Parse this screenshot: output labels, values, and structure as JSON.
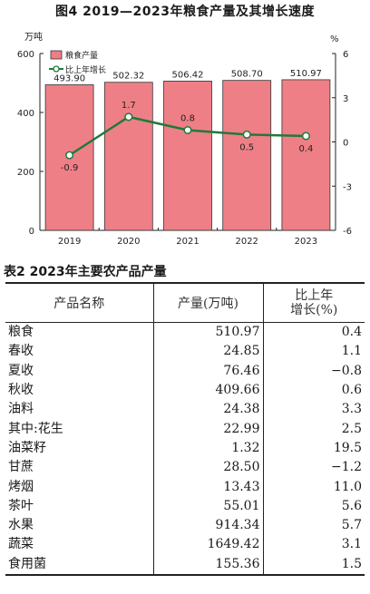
{
  "figure_title": "图4  2019—2023年粮食产量及其增长速度",
  "table_title": "表2  2023年主要农产品产量",
  "chart_data": {
    "type": "bar+line",
    "title": "图4  2019—2023年粮食产量及其增长速度",
    "categories": [
      "2019",
      "2020",
      "2021",
      "2022",
      "2023"
    ],
    "left_axis": {
      "unit": "万吨",
      "ticks": [
        "0",
        "200",
        "400",
        "600"
      ],
      "range": [
        0,
        600
      ]
    },
    "right_axis": {
      "unit": "%",
      "ticks": [
        "-6",
        "-3",
        "0",
        "3",
        "6"
      ],
      "range": [
        -6,
        6
      ]
    },
    "series": [
      {
        "name": "粮食产量",
        "type": "bar",
        "axis": "left",
        "color": "#ef7f86",
        "values": [
          493.9,
          502.32,
          506.42,
          508.7,
          510.97
        ],
        "labels": [
          "493.90",
          "502.32",
          "506.42",
          "508.70",
          "510.97"
        ]
      },
      {
        "name": "比上年增长",
        "type": "line",
        "axis": "right",
        "color": "#1f7a3a",
        "values": [
          -0.9,
          1.7,
          0.8,
          0.5,
          0.4
        ],
        "labels": [
          "-0.9",
          "1.7",
          "0.8",
          "0.5",
          "0.4"
        ]
      }
    ],
    "legend_position": "top-left"
  },
  "table": {
    "headers": [
      "产品名称",
      "产量(万吨)",
      "比上年\n增长(%)"
    ],
    "rows": [
      {
        "name": "粮食",
        "level": 0,
        "output": "510.97",
        "growth": "0.4"
      },
      {
        "name": "春收",
        "level": 1,
        "output": "24.85",
        "growth": "1.1"
      },
      {
        "name": "夏收",
        "level": 1,
        "output": "76.46",
        "growth": "−0.8"
      },
      {
        "name": "秋收",
        "level": 1,
        "output": "409.66",
        "growth": "0.6"
      },
      {
        "name": "油料",
        "level": 0,
        "output": "24.38",
        "growth": "3.3"
      },
      {
        "name": "其中:花生",
        "level": 1,
        "output": "22.99",
        "growth": "2.5"
      },
      {
        "name": "油菜籽",
        "level": 2,
        "output": "1.32",
        "growth": "19.5"
      },
      {
        "name": "甘蔗",
        "level": 0,
        "output": "28.50",
        "growth": "−1.2"
      },
      {
        "name": "烤烟",
        "level": 0,
        "output": "13.43",
        "growth": "11.0"
      },
      {
        "name": "茶叶",
        "level": 0,
        "output": "55.01",
        "growth": "5.6"
      },
      {
        "name": "水果",
        "level": 0,
        "output": "914.34",
        "growth": "5.7"
      },
      {
        "name": "蔬菜",
        "level": 0,
        "output": "1649.42",
        "growth": "3.1"
      },
      {
        "name": "食用菌",
        "level": 0,
        "output": "155.36",
        "growth": "1.5"
      }
    ]
  }
}
